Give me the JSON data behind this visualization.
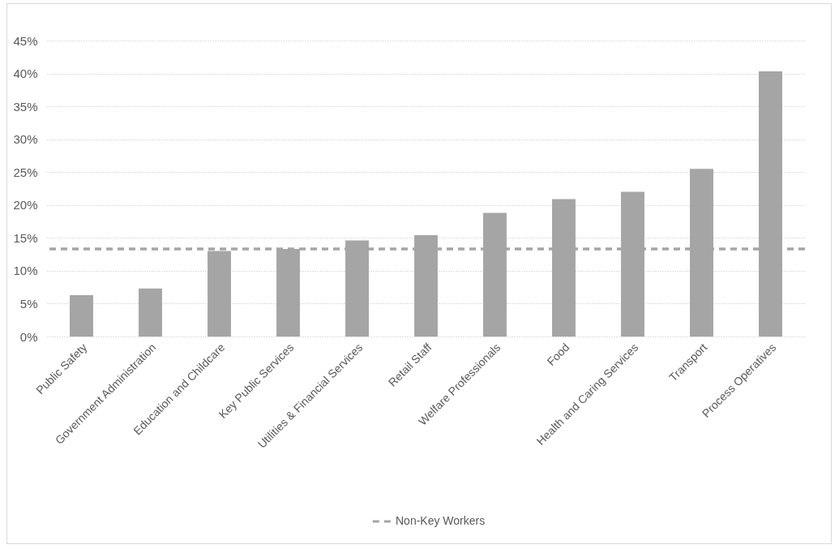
{
  "chart_data": {
    "type": "bar",
    "categories": [
      "Public Safety",
      "Government Administration",
      "Education and Childcare",
      "Key Public Services",
      "Utilities & Financial Services",
      "Retail Staff",
      "Welfare Professionals",
      "Food",
      "Health and Caring Services",
      "Transport",
      "Process Operatives"
    ],
    "series": [
      {
        "color": "#a5a5a5",
        "values": [
          6.3,
          7.3,
          13.0,
          13.3,
          14.6,
          15.4,
          18.8,
          20.9,
          22.0,
          25.5,
          40.3
        ]
      }
    ],
    "ref_lines": [
      {
        "axis": "y",
        "value": 13.3,
        "label": "Non-Key Workers",
        "color": "#a5a5a5",
        "line_style": "dashed"
      }
    ],
    "ylim": [
      0,
      45
    ],
    "yticks": [
      {
        "value": 0,
        "label": "0%"
      },
      {
        "value": 5,
        "label": "5%"
      },
      {
        "value": 10,
        "label": "10%"
      },
      {
        "value": 15,
        "label": "15%"
      },
      {
        "value": 20,
        "label": "20%"
      },
      {
        "value": 25,
        "label": "25%"
      },
      {
        "value": 30,
        "label": "30%"
      },
      {
        "value": 35,
        "label": "35%"
      },
      {
        "value": 40,
        "label": "40%"
      },
      {
        "value": 45,
        "label": "45%"
      }
    ],
    "grid": "y",
    "legend": "bottom"
  }
}
